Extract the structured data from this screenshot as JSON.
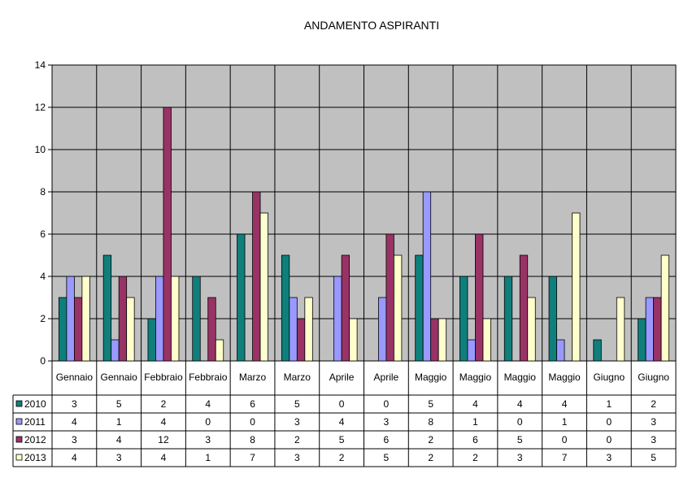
{
  "chart_data": {
    "type": "bar",
    "title": "ANDAMENTO ASPIRANTI",
    "xlabel": "",
    "ylabel": "",
    "ylim": [
      0,
      14
    ],
    "yticks": [
      0,
      2,
      4,
      6,
      8,
      10,
      12,
      14
    ],
    "grid": true,
    "legend": "data-table",
    "categories": [
      "Gennaio",
      "Gennaio",
      "Febbraio",
      "Febbraio",
      "Marzo",
      "Marzo",
      "Aprile",
      "Aprile",
      "Maggio",
      "Maggio",
      "Maggio",
      "Maggio",
      "Giugno",
      "Giugno"
    ],
    "series": [
      {
        "name": "2010",
        "color": "#0f7f7c",
        "values": [
          3,
          5,
          2,
          4,
          6,
          5,
          0,
          0,
          5,
          4,
          4,
          4,
          1,
          2
        ]
      },
      {
        "name": "2011",
        "color": "#9999ff",
        "values": [
          4,
          1,
          4,
          0,
          0,
          3,
          4,
          3,
          8,
          1,
          0,
          1,
          0,
          3
        ]
      },
      {
        "name": "2012",
        "color": "#993366",
        "values": [
          3,
          4,
          12,
          3,
          8,
          2,
          5,
          6,
          2,
          6,
          5,
          0,
          0,
          3
        ]
      },
      {
        "name": "2013",
        "color": "#ffffcc",
        "values": [
          4,
          3,
          4,
          1,
          7,
          3,
          2,
          5,
          2,
          2,
          3,
          7,
          3,
          5
        ]
      }
    ]
  }
}
